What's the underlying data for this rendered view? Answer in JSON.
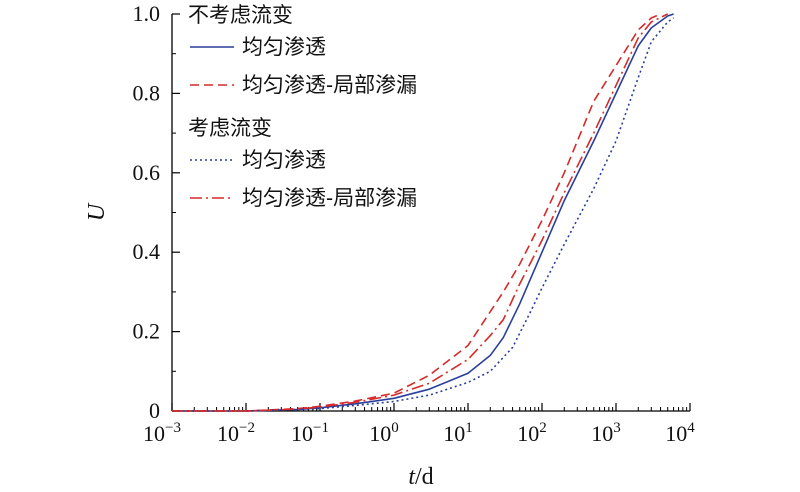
{
  "chart_data": {
    "type": "line",
    "xscale": "log",
    "xlim": [
      0.001,
      10000
    ],
    "ylim": [
      0,
      1
    ],
    "x_tick_labels": [
      {
        "base": "10",
        "exp": "−3"
      },
      {
        "base": "10",
        "exp": "−2"
      },
      {
        "base": "10",
        "exp": "−1"
      },
      {
        "base": "10",
        "exp": "0"
      },
      {
        "base": "10",
        "exp": "1"
      },
      {
        "base": "10",
        "exp": "2"
      },
      {
        "base": "10",
        "exp": "3"
      },
      {
        "base": "10",
        "exp": "4"
      }
    ],
    "y_tick_labels": [
      "0",
      "0.2",
      "0.4",
      "0.6",
      "0.8",
      "1.0"
    ],
    "xlabel": {
      "italic": "t",
      "rest": "/d"
    },
    "ylabel": "U",
    "grid": false,
    "legend_position": "top-left",
    "legend_groups": [
      "不考虑流变",
      "考虑流变"
    ],
    "series": [
      {
        "name": "均匀渗透",
        "group": 0,
        "style": "solid",
        "color": "#2a3f9a",
        "points": [
          [
            0.001,
            0
          ],
          [
            0.01,
            0
          ],
          [
            0.05,
            0.004
          ],
          [
            0.1,
            0.008
          ],
          [
            0.3,
            0.018
          ],
          [
            1,
            0.032
          ],
          [
            3,
            0.055
          ],
          [
            10,
            0.095
          ],
          [
            20,
            0.14
          ],
          [
            30,
            0.185
          ],
          [
            50,
            0.27
          ],
          [
            100,
            0.4
          ],
          [
            200,
            0.53
          ],
          [
            500,
            0.68
          ],
          [
            1000,
            0.8
          ],
          [
            2000,
            0.92
          ],
          [
            3000,
            0.965
          ],
          [
            5000,
            0.995
          ],
          [
            6000,
            1.0
          ]
        ]
      },
      {
        "name": "均匀渗透-局部渗漏",
        "group": 0,
        "style": "dashed",
        "color": "#d42a2a",
        "points": [
          [
            0.001,
            0
          ],
          [
            0.01,
            0
          ],
          [
            0.05,
            0.006
          ],
          [
            0.1,
            0.012
          ],
          [
            0.3,
            0.025
          ],
          [
            1,
            0.045
          ],
          [
            3,
            0.09
          ],
          [
            10,
            0.165
          ],
          [
            30,
            0.3
          ],
          [
            50,
            0.37
          ],
          [
            100,
            0.48
          ],
          [
            200,
            0.6
          ],
          [
            500,
            0.78
          ],
          [
            1000,
            0.87
          ],
          [
            2000,
            0.96
          ],
          [
            3000,
            0.99
          ],
          [
            4000,
            1.0
          ]
        ]
      },
      {
        "name": "均匀渗透",
        "group": 1,
        "style": "dotted",
        "color": "#2a3f9a",
        "points": [
          [
            0.001,
            0
          ],
          [
            0.01,
            0
          ],
          [
            0.1,
            0.006
          ],
          [
            0.3,
            0.014
          ],
          [
            1,
            0.024
          ],
          [
            3,
            0.04
          ],
          [
            10,
            0.072
          ],
          [
            20,
            0.1
          ],
          [
            40,
            0.16
          ],
          [
            70,
            0.25
          ],
          [
            100,
            0.31
          ],
          [
            200,
            0.42
          ],
          [
            500,
            0.56
          ],
          [
            1000,
            0.68
          ],
          [
            2000,
            0.84
          ],
          [
            3000,
            0.93
          ],
          [
            5000,
            0.98
          ],
          [
            6000,
            0.99
          ]
        ]
      },
      {
        "name": "均匀渗透-局部渗漏",
        "group": 1,
        "style": "dashdot",
        "color": "#d42a2a",
        "points": [
          [
            0.001,
            0
          ],
          [
            0.01,
            0
          ],
          [
            0.05,
            0.005
          ],
          [
            0.1,
            0.01
          ],
          [
            0.3,
            0.022
          ],
          [
            1,
            0.04
          ],
          [
            3,
            0.07
          ],
          [
            10,
            0.13
          ],
          [
            20,
            0.19
          ],
          [
            30,
            0.23
          ],
          [
            50,
            0.32
          ],
          [
            100,
            0.43
          ],
          [
            200,
            0.55
          ],
          [
            500,
            0.7
          ],
          [
            1000,
            0.82
          ],
          [
            2000,
            0.94
          ],
          [
            3000,
            0.98
          ],
          [
            5000,
            1.0
          ]
        ]
      }
    ]
  }
}
